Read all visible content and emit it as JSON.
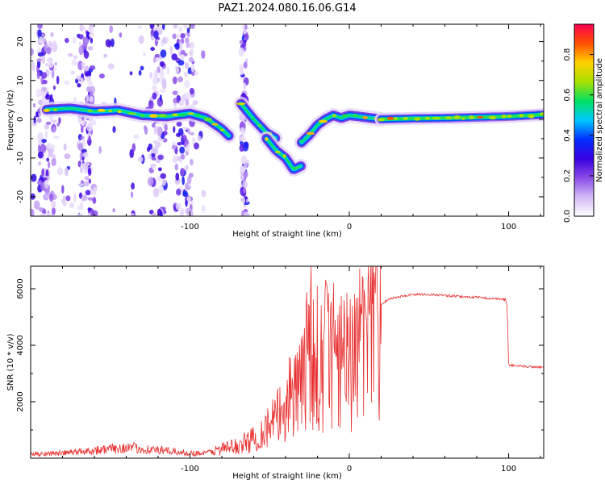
{
  "chart_data": [
    {
      "type": "heatmap",
      "title": "PAZ1.2024.080.16.06.G14",
      "xlabel": "Height of straight line (km)",
      "ylabel": "Frequency (Hz)",
      "xlim": [
        -200,
        122
      ],
      "ylim": [
        -25,
        24.5
      ],
      "xticks": [
        -100,
        0,
        100
      ],
      "yticks": [
        -20,
        -10,
        0,
        10,
        20
      ],
      "colorbar": {
        "label": "Normalized spectral amplitude",
        "range": [
          0,
          0.95
        ],
        "ticks": [
          0.0,
          0.2,
          0.4,
          0.6,
          0.8
        ],
        "colormap": [
          "#ffffff",
          "#d2b8f5",
          "#8a4be8",
          "#3a00e0",
          "#0030ff",
          "#00c8ff",
          "#00e060",
          "#a8e000",
          "#ffd000",
          "#ff5000",
          "#ff0050"
        ]
      },
      "tracks": [
        {
          "segment": "main",
          "x": [
            -190,
            -175,
            -160,
            -145,
            -130,
            -115,
            -100,
            -90,
            -80,
            -75
          ],
          "y": [
            2.5,
            2.8,
            2.0,
            2.3,
            1.0,
            0.7,
            1.5,
            0.3,
            -2.5,
            -4.5
          ]
        },
        {
          "segment": "descending-1",
          "x": [
            -68,
            -60,
            -52,
            -46
          ],
          "y": [
            4.0,
            0.0,
            -3.5,
            -5.0
          ]
        },
        {
          "segment": "descending-2",
          "x": [
            -52,
            -46,
            -40,
            -35,
            -30
          ],
          "y": [
            -5.0,
            -8.0,
            -10.0,
            -13.0,
            -12.0
          ]
        },
        {
          "segment": "rising",
          "x": [
            -30,
            -25,
            -20,
            -15,
            -10,
            -5,
            0,
            10,
            20
          ],
          "y": [
            -6.0,
            -4.0,
            -1.5,
            0.0,
            1.0,
            0.3,
            1.0,
            0.5,
            0.0
          ]
        },
        {
          "segment": "flat",
          "x": [
            20,
            40,
            60,
            80,
            100,
            122
          ],
          "y": [
            0.0,
            0.2,
            0.3,
            0.5,
            0.7,
            1.2
          ]
        }
      ]
    },
    {
      "type": "line",
      "title": "",
      "xlabel": "Height of straight line (km)",
      "ylabel": "SNR (10 * v/v)",
      "xlim": [
        -200,
        122
      ],
      "ylim": [
        0,
        6800
      ],
      "xticks": [
        -100,
        0,
        100
      ],
      "yticks": [
        2000,
        4000,
        6000
      ],
      "color": "#e83030",
      "envelope": {
        "x": [
          -200,
          -180,
          -160,
          -140,
          -120,
          -100,
          -90,
          -80,
          -70,
          -60,
          -50,
          -40,
          -30,
          -25,
          -20,
          -15,
          -10,
          -5,
          0,
          5,
          10,
          15,
          20,
          25,
          30,
          40,
          50,
          60,
          70,
          80,
          90,
          98,
          99,
          100,
          110,
          122
        ],
        "y": [
          150,
          180,
          280,
          380,
          280,
          180,
          180,
          330,
          430,
          680,
          1150,
          1750,
          2650,
          3900,
          2300,
          3600,
          2900,
          3300,
          3000,
          3800,
          4300,
          5000,
          5450,
          5650,
          5700,
          5800,
          5800,
          5760,
          5720,
          5700,
          5650,
          5620,
          5400,
          3300,
          3250,
          3220
        ]
      },
      "peaks": [
        {
          "x": -24,
          "y": 6800
        },
        {
          "x": -20,
          "y": 6100
        },
        {
          "x": -13,
          "y": 5850
        },
        {
          "x": -10,
          "y": 6200
        },
        {
          "x": 2,
          "y": 5400
        }
      ]
    }
  ]
}
